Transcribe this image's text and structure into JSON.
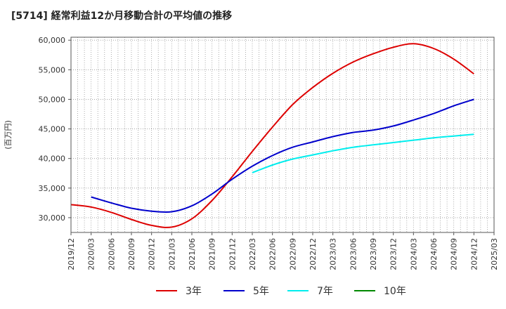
{
  "chart_data": {
    "type": "line",
    "title": "[5714]  経常利益12か月移動合計の平均値の推移",
    "ylabel": "(百万円)",
    "xlabel": "",
    "ylim": [
      27500,
      60500
    ],
    "yticks": [
      30000,
      35000,
      40000,
      45000,
      50000,
      55000,
      60000
    ],
    "ytick_labels": [
      "30,000",
      "35,000",
      "40,000",
      "45,000",
      "50,000",
      "55,000",
      "60,000"
    ],
    "xticks": [
      "2019/12",
      "2020/03",
      "2020/06",
      "2020/09",
      "2020/12",
      "2021/03",
      "2021/06",
      "2021/09",
      "2021/12",
      "2022/03",
      "2022/06",
      "2022/09",
      "2022/12",
      "2023/03",
      "2023/06",
      "2023/09",
      "2023/12",
      "2024/03",
      "2024/06",
      "2024/09",
      "2024/12",
      "2025/03"
    ],
    "grid": true,
    "legend_position": "bottom",
    "series": [
      {
        "name": "3年",
        "color": "#dd0000",
        "x": [
          "2019/12",
          "2020/03",
          "2020/06",
          "2020/09",
          "2020/12",
          "2021/03",
          "2021/06",
          "2021/09",
          "2021/12",
          "2022/03",
          "2022/06",
          "2022/09",
          "2022/12",
          "2023/03",
          "2023/06",
          "2023/09",
          "2023/12",
          "2024/03",
          "2024/06",
          "2024/09",
          "2024/12"
        ],
        "values": [
          32200,
          31800,
          30900,
          29700,
          28700,
          28400,
          29800,
          32900,
          36900,
          41200,
          45300,
          49100,
          52000,
          54400,
          56300,
          57700,
          58800,
          59400,
          58600,
          56800,
          54300
        ]
      },
      {
        "name": "5年",
        "color": "#0000cc",
        "x": [
          "2020/03",
          "2020/06",
          "2020/09",
          "2020/12",
          "2021/03",
          "2021/06",
          "2021/09",
          "2021/12",
          "2022/03",
          "2022/06",
          "2022/09",
          "2022/12",
          "2023/03",
          "2023/06",
          "2023/09",
          "2023/12",
          "2024/03",
          "2024/06",
          "2024/09",
          "2024/12"
        ],
        "values": [
          33500,
          32500,
          31600,
          31100,
          31000,
          32000,
          34000,
          36500,
          38700,
          40500,
          41900,
          42800,
          43700,
          44400,
          44800,
          45500,
          46500,
          47600,
          48900,
          50000
        ]
      },
      {
        "name": "7年",
        "color": "#00eeee",
        "x": [
          "2022/03",
          "2022/06",
          "2022/09",
          "2022/12",
          "2023/03",
          "2023/06",
          "2023/09",
          "2023/12",
          "2024/03",
          "2024/06",
          "2024/09",
          "2024/12"
        ],
        "values": [
          37600,
          38900,
          39900,
          40600,
          41300,
          41900,
          42300,
          42700,
          43100,
          43500,
          43800,
          44100
        ]
      },
      {
        "name": "10年",
        "color": "#008800",
        "x": [],
        "values": []
      }
    ]
  }
}
